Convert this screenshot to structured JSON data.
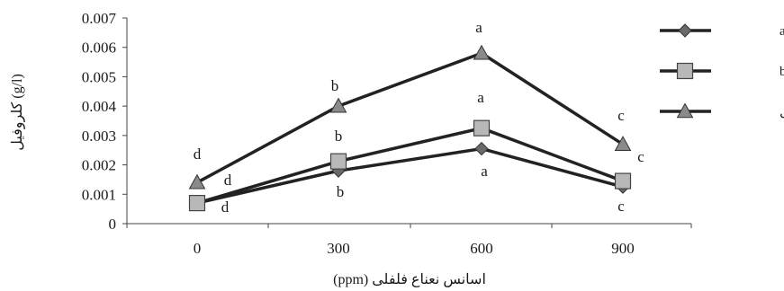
{
  "chart_data": {
    "type": "line",
    "xlabel": "اسانس نعناع فلفلی (ppm)",
    "ylabel": "کلروفیل (g/l)",
    "x": [
      0,
      300,
      600,
      900
    ],
    "x_tick_labels": [
      "0",
      "300",
      "600",
      "900"
    ],
    "ylim": [
      0,
      0.007
    ],
    "y_ticks": [
      0,
      0.001,
      0.002,
      0.003,
      0.004,
      0.005,
      0.006,
      0.007
    ],
    "y_tick_labels": [
      "0",
      "0.001",
      "0.002",
      "0.003",
      "0.004",
      "0.005",
      "0.006",
      "0.007"
    ],
    "grid": false,
    "legend_position": "right",
    "series": [
      {
        "name": "کلروفیل a",
        "marker": "diamond",
        "marker_color": "#6a6a6a",
        "values": [
          0.0007,
          0.0018,
          0.00255,
          0.00125
        ],
        "letters": [
          "d",
          "b",
          "a",
          "c"
        ]
      },
      {
        "name": "کلروفیل b",
        "marker": "square",
        "marker_color": "#b8b8b8",
        "values": [
          0.0007,
          0.00212,
          0.00325,
          0.00145
        ],
        "letters": [
          "d",
          "b",
          "a",
          "c"
        ]
      },
      {
        "name": "کلروفیل کل",
        "marker": "triangle",
        "marker_color": "#8a8a8a",
        "values": [
          0.0014,
          0.004,
          0.0058,
          0.0027
        ],
        "letters": [
          "d",
          "b",
          "a",
          "c"
        ]
      }
    ],
    "line_color": "#222222"
  }
}
